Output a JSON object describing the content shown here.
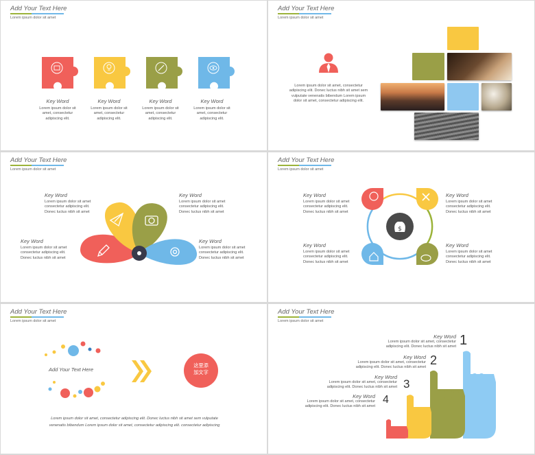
{
  "header": {
    "title": "Add Your Text Here",
    "subtitle": "Lorem ipsum dolor sit amet"
  },
  "colors": {
    "red": "#f0605a",
    "yellow": "#f9c841",
    "olive": "#9a9f47",
    "blue": "#6fb8e8",
    "dark": "#3a3a4a"
  },
  "slide1": {
    "items": [
      {
        "title": "Key Word",
        "text": [
          "Lorem ipsum dolor sit",
          "amet, consectetur",
          "adipiscing elit."
        ],
        "icon": "briefcase-icon"
      },
      {
        "title": "Key Word",
        "text": [
          "Lorem ipsum dolor sit",
          "amet, consectetur",
          "adipiscing elit."
        ],
        "icon": "lightbulb-icon"
      },
      {
        "title": "Key Word",
        "text": [
          "Lorem ipsum dolor sit",
          "amet, consectetur",
          "adipiscing elit."
        ],
        "icon": "pencil-icon"
      },
      {
        "title": "Key Word",
        "text": [
          "Lorem ipsum dolor sit",
          "amet, consectetur",
          "adipiscing elit."
        ],
        "icon": "eye-icon"
      }
    ]
  },
  "slide2": {
    "text": [
      "Lorem ipsum dolor sit amet, consectetur",
      "adipiscing elit. Donec luctus nibh sit amet sem",
      "vulputate venenatis bibendum Lorem ipsum",
      "dolor sit amet, consectetur adipiscing elit."
    ]
  },
  "slide3": {
    "items": [
      {
        "title": "Key Word",
        "text": [
          "Lorem ipsum dolor sit amet",
          "consectetur adipiscing elit.",
          "Donec luctus nibh sit amet"
        ]
      },
      {
        "title": "Key Word",
        "text": [
          "Lorem ipsum dolor sit amet",
          "consectetur adipiscing elit.",
          "Donec luctus nibh sit amet"
        ]
      },
      {
        "title": "Key Word",
        "text": [
          "Lorem ipsum dolor sit amet",
          "consectetur adipiscing elit.",
          "Donec luctus nibh sit amet"
        ]
      },
      {
        "title": "Key Word",
        "text": [
          "Lorem ipsum dolor sit amet",
          "consectetur adipiscing elit.",
          "Donec luctus nibh sit amet"
        ]
      }
    ]
  },
  "slide4": {
    "items": [
      {
        "title": "Key Word",
        "text": [
          "Lorem ipsum dolor sit amet",
          "consectetur adipiscing elit.",
          "Donec luctus nibh sit amet"
        ]
      },
      {
        "title": "Key Word",
        "text": [
          "Lorem ipsum dolor sit amet",
          "consectetur adipiscing elit.",
          "Donec luctus nibh sit amet"
        ]
      },
      {
        "title": "Key Word",
        "text": [
          "Lorem ipsum dolor sit amet",
          "consectetur adipiscing elit.",
          "Donec luctus nibh sit amet"
        ]
      },
      {
        "title": "Key Word",
        "text": [
          "Lorem ipsum dolor sit amet",
          "consectetur adipiscing elit.",
          "Donec luctus nibh sit amet"
        ]
      }
    ]
  },
  "slide5": {
    "center": "Add Your Text Here",
    "circle": [
      "这里添",
      "加文字"
    ],
    "footer": [
      "Lorem ipsum dolor sit amet, consectetur adipiscing elit. Donec luctus nibh sit amet sem vulputate",
      "venenatis bibendum Lorem ipsum dolor sit amet, consectetur adipiscing elit. consectetur adipiscing"
    ]
  },
  "slide6": {
    "items": [
      {
        "title": "Key Word",
        "text": [
          "Lorem ipsum dolor sit amet, consectetur",
          "adipiscing elit. Donec luctus nibh sit amet"
        ],
        "number": "1"
      },
      {
        "title": "Key Word",
        "text": [
          "Lorem ipsum dolor sit amet, consectetur",
          "adipiscing elit. Donec luctus nibh sit amet"
        ],
        "number": "2"
      },
      {
        "title": "Key Word",
        "text": [
          "Lorem ipsum dolor sit amet, consectetur",
          "adipiscing elit. Donec luctus nibh sit amet"
        ],
        "number": "3"
      },
      {
        "title": "Key Word",
        "text": [
          "Lorem ipsum dolor sit amet, consectetur",
          "adipiscing elit. Donec luctus nibh sit amet"
        ],
        "number": "4"
      }
    ]
  }
}
